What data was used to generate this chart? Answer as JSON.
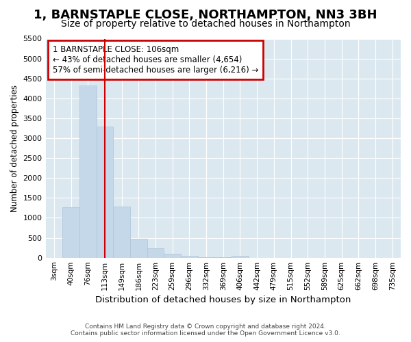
{
  "title": "1, BARNSTAPLE CLOSE, NORTHAMPTON, NN3 3BH",
  "subtitle": "Size of property relative to detached houses in Northampton",
  "xlabel": "Distribution of detached houses by size in Northampton",
  "ylabel": "Number of detached properties",
  "footer_line1": "Contains HM Land Registry data © Crown copyright and database right 2024.",
  "footer_line2": "Contains public sector information licensed under the Open Government Licence v3.0.",
  "annotation_title": "1 BARNSTAPLE CLOSE: 106sqm",
  "annotation_line2": "← 43% of detached houses are smaller (4,654)",
  "annotation_line3": "57% of semi-detached houses are larger (6,216) →",
  "bar_color": "#c5d8ea",
  "bar_edge_color": "#adc4d8",
  "vline_color": "#cc0000",
  "vline_x": 3,
  "categories": [
    "3sqm",
    "40sqm",
    "76sqm",
    "113sqm",
    "149sqm",
    "186sqm",
    "223sqm",
    "259sqm",
    "296sqm",
    "332sqm",
    "369sqm",
    "406sqm",
    "442sqm",
    "479sqm",
    "515sqm",
    "552sqm",
    "589sqm",
    "625sqm",
    "662sqm",
    "698sqm",
    "735sqm"
  ],
  "values": [
    0,
    1260,
    4330,
    3300,
    1280,
    470,
    240,
    90,
    50,
    15,
    5,
    50,
    0,
    0,
    0,
    0,
    0,
    0,
    0,
    0,
    0
  ],
  "ylim": [
    0,
    5500
  ],
  "yticks": [
    0,
    500,
    1000,
    1500,
    2000,
    2500,
    3000,
    3500,
    4000,
    4500,
    5000,
    5500
  ],
  "bg_color": "#ffffff",
  "plot_bg_color": "#dce8f0",
  "grid_color": "#ffffff",
  "title_fontsize": 13,
  "subtitle_fontsize": 10,
  "annotation_box_color": "#ffffff",
  "annotation_box_edge": "#cc0000"
}
